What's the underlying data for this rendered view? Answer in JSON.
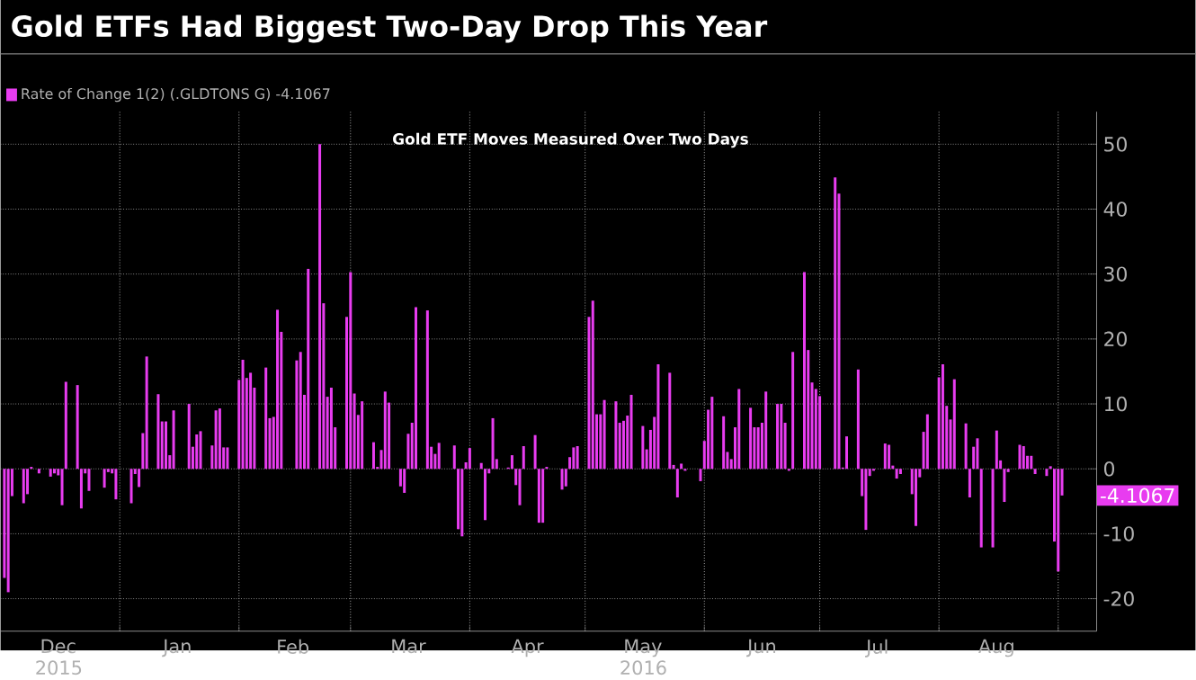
{
  "chart_data": {
    "type": "bar",
    "title": "Gold ETFs Had Biggest Two-Day Drop This Year",
    "subtitle": "Gold ETF Moves Measured Over Two Days",
    "x": [
      "2015-12-02",
      "2015-12-03",
      "2015-12-04",
      "2015-12-07",
      "2015-12-08",
      "2015-12-09",
      "2015-12-10",
      "2015-12-11",
      "2015-12-14",
      "2015-12-15",
      "2015-12-16",
      "2015-12-17",
      "2015-12-18",
      "2015-12-21",
      "2015-12-22",
      "2015-12-23",
      "2015-12-24",
      "2015-12-28",
      "2015-12-29",
      "2015-12-30",
      "2015-12-31",
      "2016-01-04",
      "2016-01-05",
      "2016-01-06",
      "2016-01-07",
      "2016-01-08",
      "2016-01-11",
      "2016-01-12",
      "2016-01-13",
      "2016-01-14",
      "2016-01-15",
      "2016-01-19",
      "2016-01-20",
      "2016-01-21",
      "2016-01-22",
      "2016-01-25",
      "2016-01-26",
      "2016-01-27",
      "2016-01-28",
      "2016-01-29",
      "2016-02-01",
      "2016-02-02",
      "2016-02-03",
      "2016-02-04",
      "2016-02-05",
      "2016-02-08",
      "2016-02-09",
      "2016-02-10",
      "2016-02-11",
      "2016-02-12",
      "2016-02-16",
      "2016-02-17",
      "2016-02-18",
      "2016-02-19",
      "2016-02-22",
      "2016-02-23",
      "2016-02-24",
      "2016-02-25",
      "2016-02-26",
      "2016-02-29",
      "2016-03-01",
      "2016-03-02",
      "2016-03-03",
      "2016-03-04",
      "2016-03-07",
      "2016-03-08",
      "2016-03-09",
      "2016-03-10",
      "2016-03-11",
      "2016-03-14",
      "2016-03-15",
      "2016-03-16",
      "2016-03-17",
      "2016-03-18",
      "2016-03-21",
      "2016-03-22",
      "2016-03-23",
      "2016-03-24",
      "2016-03-28",
      "2016-03-29",
      "2016-03-30",
      "2016-03-31",
      "2016-04-01",
      "2016-04-04",
      "2016-04-05",
      "2016-04-06",
      "2016-04-07",
      "2016-04-08",
      "2016-04-11",
      "2016-04-12",
      "2016-04-13",
      "2016-04-14",
      "2016-04-15",
      "2016-04-18",
      "2016-04-19",
      "2016-04-20",
      "2016-04-21",
      "2016-04-22",
      "2016-04-25",
      "2016-04-26",
      "2016-04-27",
      "2016-04-28",
      "2016-04-29",
      "2016-05-02",
      "2016-05-03",
      "2016-05-04",
      "2016-05-05",
      "2016-05-06",
      "2016-05-09",
      "2016-05-10",
      "2016-05-11",
      "2016-05-12",
      "2016-05-13",
      "2016-05-16",
      "2016-05-17",
      "2016-05-18",
      "2016-05-19",
      "2016-05-20",
      "2016-05-23",
      "2016-05-24",
      "2016-05-25",
      "2016-05-26",
      "2016-05-27",
      "2016-05-31",
      "2016-06-01",
      "2016-06-02",
      "2016-06-03",
      "2016-06-06",
      "2016-06-07",
      "2016-06-08",
      "2016-06-09",
      "2016-06-10",
      "2016-06-13",
      "2016-06-14",
      "2016-06-15",
      "2016-06-16",
      "2016-06-17",
      "2016-06-20",
      "2016-06-21",
      "2016-06-22",
      "2016-06-23",
      "2016-06-24",
      "2016-06-27",
      "2016-06-28",
      "2016-06-29",
      "2016-06-30",
      "2016-07-01",
      "2016-07-05",
      "2016-07-06",
      "2016-07-07",
      "2016-07-08",
      "2016-07-11",
      "2016-07-12",
      "2016-07-13",
      "2016-07-14",
      "2016-07-15",
      "2016-07-18",
      "2016-07-19",
      "2016-07-20",
      "2016-07-21",
      "2016-07-22",
      "2016-07-25",
      "2016-07-26",
      "2016-07-27",
      "2016-07-28",
      "2016-07-29",
      "2016-08-01",
      "2016-08-02",
      "2016-08-03",
      "2016-08-04",
      "2016-08-05",
      "2016-08-08",
      "2016-08-09",
      "2016-08-10",
      "2016-08-11",
      "2016-08-12",
      "2016-08-15",
      "2016-08-16",
      "2016-08-17",
      "2016-08-18",
      "2016-08-19",
      "2016-08-22",
      "2016-08-23",
      "2016-08-24",
      "2016-08-25",
      "2016-08-26",
      "2016-08-29",
      "2016-08-30",
      "2016-08-31",
      "2016-09-01",
      "2016-09-02"
    ],
    "series": [
      {
        "name": "Rate of Change 1(2) (.GLDTONS G) -4.1067",
        "color": "#e83cf0",
        "values": [
          -16.8,
          -19,
          -4.2,
          -5.3,
          -3.9,
          0.3,
          0,
          -0.7,
          -1.2,
          -0.7,
          -1,
          -5.6,
          13.4,
          12.9,
          -6.1,
          -0.7,
          -3.4,
          -2.9,
          -0.5,
          -0.7,
          -4.7,
          -5.3,
          -0.8,
          -2.8,
          5.5,
          17.3,
          11.5,
          7.3,
          7.3,
          2.1,
          9,
          10,
          3.4,
          5.3,
          5.8,
          3.6,
          9,
          9.3,
          3.3,
          3.3,
          13.7,
          16.8,
          14,
          14.8,
          12.5,
          15.6,
          7.8,
          8,
          24.5,
          21.1,
          16.7,
          18,
          11.4,
          30.8,
          50,
          25.5,
          11.1,
          12.5,
          6.4,
          23.4,
          30.3,
          11.6,
          8.3,
          10.4,
          4.1,
          0.3,
          2.9,
          11.9,
          10.2,
          -2.7,
          -3.7,
          5.4,
          7.1,
          24.9,
          24.4,
          3.4,
          2.3,
          4,
          3.6,
          -9.3,
          -10.4,
          1,
          3.2,
          0.9,
          -7.9,
          -0.7,
          7.8,
          1.5,
          0.2,
          2.1,
          -2.5,
          -5.6,
          3.5,
          5.2,
          -8.3,
          -8.3,
          0.3,
          0,
          -3.2,
          -2.7,
          1.8,
          3.3,
          3.5,
          23.4,
          25.9,
          8.4,
          8.4,
          10.6,
          10.4,
          7.1,
          7.4,
          8.2,
          11.4,
          6.6,
          3,
          6,
          8,
          16.1,
          14.8,
          0.6,
          -4.4,
          0.8,
          -0.3,
          -1.9,
          4.3,
          9.1,
          11.1,
          8.1,
          2.6,
          1.5,
          6.4,
          12.3,
          9.4,
          6.4,
          6.4,
          7.1,
          11.9,
          10,
          10,
          7.1,
          -0.3,
          18,
          30.3,
          18.3,
          13.3,
          12.3,
          11.2,
          44.9,
          42.4,
          0.2,
          5,
          15.3,
          -4.2,
          -9.4,
          -1.1,
          -0.3,
          3.9,
          3.7,
          0.5,
          -1.5,
          -0.8,
          -3.9,
          -8.8,
          -1.3,
          5.7,
          8.4,
          14.1,
          16.1,
          9.7,
          7.6,
          13.8,
          7,
          -4.4,
          3.4,
          4.7,
          -12.1,
          -12.1,
          5.9,
          1.3,
          -5.1,
          -0.5,
          3.7,
          3.5,
          2,
          2,
          -0.8,
          -1.1,
          0.4,
          -11.2,
          -15.8,
          -4.1067
        ]
      }
    ],
    "xlim": [
      "2015-12-01",
      "2016-09-11"
    ],
    "xticks": [
      {
        "value": "2015-12-16",
        "label": "Dec 2015"
      },
      {
        "value": "2016-01-01",
        "label": null
      },
      {
        "value": "2016-01-16",
        "label": "Jan"
      },
      {
        "value": "2016-02-01",
        "label": null
      },
      {
        "value": "2016-02-15",
        "label": "Feb"
      },
      {
        "value": "2016-03-01",
        "label": null
      },
      {
        "value": "2016-03-16",
        "label": "Mar"
      },
      {
        "value": "2016-04-01",
        "label": null
      },
      {
        "value": "2016-04-16",
        "label": "Apr"
      },
      {
        "value": "2016-05-01",
        "label": null
      },
      {
        "value": "2016-05-16",
        "label": "May 2016"
      },
      {
        "value": "2016-06-01",
        "label": null
      },
      {
        "value": "2016-06-16",
        "label": "Jun"
      },
      {
        "value": "2016-07-01",
        "label": null
      },
      {
        "value": "2016-07-16",
        "label": "Jul"
      },
      {
        "value": "2016-08-01",
        "label": null
      },
      {
        "value": "2016-08-16",
        "label": "Aug"
      },
      {
        "value": "2016-09-01",
        "label": null
      }
    ],
    "ylim": [
      -25,
      55
    ],
    "yticks": [
      -20,
      -10,
      0,
      10,
      20,
      30,
      40,
      50
    ],
    "grid": true,
    "legend": "top left",
    "annotations": [
      "-4.1067"
    ]
  }
}
